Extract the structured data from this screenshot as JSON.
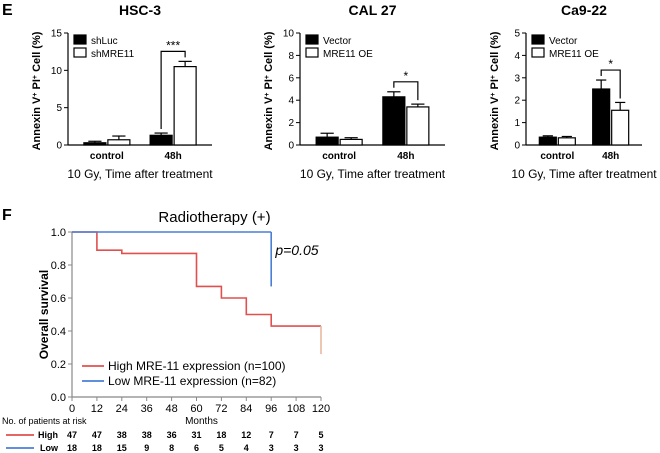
{
  "panels": {
    "E": "E",
    "F": "F"
  },
  "colors": {
    "high": "#e0504f",
    "low": "#4a7fd6",
    "axis": "#000000",
    "km_axis": "#888888"
  },
  "chart_data": [
    {
      "type": "bar",
      "title": "HSC-3",
      "ylabel_parts": [
        "Annexin V",
        "+",
        " PI",
        "+",
        " Cell (%)"
      ],
      "xlabel": "10 Gy, Time after treatment",
      "categories": [
        "control",
        "48h"
      ],
      "ylim": [
        0,
        15
      ],
      "yticks": [
        "0",
        "5",
        "10",
        "15"
      ],
      "series": [
        {
          "name": "shLuc",
          "fill": "black",
          "values": [
            0.3,
            1.3
          ],
          "errors": [
            0.2,
            0.3
          ]
        },
        {
          "name": "shMRE11",
          "fill": "white",
          "values": [
            0.7,
            10.5
          ],
          "errors": [
            0.5,
            0.7
          ]
        }
      ],
      "significance": "***"
    },
    {
      "type": "bar",
      "title": "CAL 27",
      "ylabel_parts": [
        "Annexin V",
        "+",
        " PI",
        "+",
        " Cell (%)"
      ],
      "xlabel": "10 Gy, Time after treatment",
      "categories": [
        "control",
        "48h"
      ],
      "ylim": [
        0,
        10
      ],
      "yticks": [
        "0",
        "2",
        "4",
        "6",
        "8",
        "10"
      ],
      "series": [
        {
          "name": "Vector",
          "fill": "black",
          "values": [
            0.7,
            4.3
          ],
          "errors": [
            0.35,
            0.45
          ]
        },
        {
          "name": "MRE11 OE",
          "fill": "white",
          "values": [
            0.5,
            3.4
          ],
          "errors": [
            0.15,
            0.25
          ]
        }
      ],
      "significance": "*"
    },
    {
      "type": "bar",
      "title": "Ca9-22",
      "ylabel_parts": [
        "Annexin V",
        "+",
        " PI",
        "+",
        " Cell (%)"
      ],
      "xlabel": "10 Gy, Time after treatment",
      "categories": [
        "control",
        "48h"
      ],
      "ylim": [
        0,
        5
      ],
      "yticks": [
        "0",
        "1",
        "2",
        "3",
        "4",
        "5"
      ],
      "series": [
        {
          "name": "Vector",
          "fill": "black",
          "values": [
            0.35,
            2.5
          ],
          "errors": [
            0.06,
            0.4
          ]
        },
        {
          "name": "MRE11 OE",
          "fill": "white",
          "values": [
            0.32,
            1.55
          ],
          "errors": [
            0.06,
            0.35
          ]
        }
      ],
      "significance": "*"
    },
    {
      "type": "line",
      "title": "Radiotherapy  (+)",
      "ylabel": "Overall survival",
      "xlabel": "Months",
      "xlim": [
        0,
        120
      ],
      "ylim": [
        0,
        1.0
      ],
      "xticks": [
        0,
        12,
        24,
        36,
        48,
        60,
        72,
        84,
        96,
        108,
        120
      ],
      "yticks": [
        "0.0",
        "0.2",
        "0.4",
        "0.6",
        "0.8",
        "1.0"
      ],
      "annotation": "p=0.05",
      "series": [
        {
          "name": "High MRE-11 expression (n=100)",
          "color_key": "high",
          "steps": [
            [
              0,
              1.0
            ],
            [
              12,
              0.89
            ],
            [
              24,
              0.87
            ],
            [
              48,
              0.87
            ],
            [
              60,
              0.67
            ],
            [
              72,
              0.6
            ],
            [
              84,
              0.5
            ],
            [
              96,
              0.43
            ],
            [
              120,
              0.43
            ]
          ],
          "end_drop": [
            120,
            0.26
          ]
        },
        {
          "name": "Low MRE-11 expression (n=82)",
          "color_key": "low",
          "steps": [
            [
              0,
              1.0
            ],
            [
              96,
              1.0
            ]
          ],
          "end_drop": [
            96,
            0.67
          ]
        }
      ],
      "risk_table": {
        "title": "No. of patients at risk",
        "rows": [
          {
            "label": "High",
            "color_key": "high",
            "values": [
              "47",
              "47",
              "38",
              "38",
              "36",
              "31",
              "18",
              "12",
              "7",
              "7",
              "5"
            ]
          },
          {
            "label": "Low",
            "color_key": "low",
            "values": [
              "18",
              "18",
              "15",
              "9",
              "8",
              "6",
              "5",
              "4",
              "3",
              "3",
              "3"
            ]
          }
        ]
      }
    }
  ]
}
